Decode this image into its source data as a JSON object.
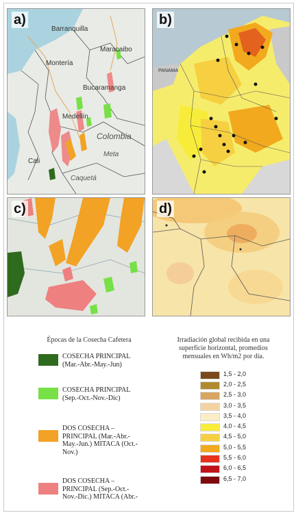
{
  "panels": {
    "a": {
      "label": "a)",
      "places": [
        "Barranquilla",
        "Maracaibo",
        "Montería",
        "Bucaramanga",
        "Medellín",
        "Colombia",
        "Meta",
        "Cali",
        "Caquetá"
      ]
    },
    "b": {
      "label": "b)",
      "places": [
        "PANAMA"
      ]
    },
    "c": {
      "label": "c)"
    },
    "d": {
      "label": "d)"
    }
  },
  "harvest_legend": {
    "title": "Épocas de la Cosecha Cafetera",
    "items": [
      {
        "lines": [
          "COSECHA PRINCIPAL",
          "(Mar.-Abr.-May.-Jun)"
        ],
        "color": "#2f6b1e"
      },
      {
        "lines": [
          "COSECHA PRINCIPAL",
          "(Sep.-Oct.-Nov.-Dic)"
        ],
        "color": "#77e046"
      },
      {
        "lines": [
          "DOS COSECHA –",
          "PRINCIPAL (Mar.-Abr.-",
          "May.-Jun.) MITACA (Oct.-",
          "Nov.)"
        ],
        "color": "#f2a224"
      },
      {
        "lines": [
          "DOS COSECHA –",
          "PRINCIPAL (Sep.-Oct.-",
          "Nov.-Dic.) MITACA (Abr.-"
        ],
        "color": "#ee8080"
      }
    ]
  },
  "irradiation_legend": {
    "title_lines": [
      "Irradiación global recibida en una",
      "superficie horizontal, promedios",
      "mensuales en Wh/m2 por día."
    ],
    "classes": [
      {
        "range": "1,5 - 2,0",
        "color": "#7a4a1c"
      },
      {
        "range": "2,0 - 2,5",
        "color": "#b08a2e"
      },
      {
        "range": "2,5 - 3,0",
        "color": "#d9a561"
      },
      {
        "range": "3,0 - 3,5",
        "color": "#f4d3a2"
      },
      {
        "range": "3,5 - 4,0",
        "color": "#fbeec6"
      },
      {
        "range": "4,0 - 4,5",
        "color": "#f8ec3a"
      },
      {
        "range": "4,5 - 5,0",
        "color": "#f6d040"
      },
      {
        "range": "5,0 - 5,5",
        "color": "#f2a91d"
      },
      {
        "range": "5,5 - 6,0",
        "color": "#e7321e"
      },
      {
        "range": "6,0 - 6,5",
        "color": "#c1121a"
      },
      {
        "range": "6,5 - 7,0",
        "color": "#7e0a0e"
      }
    ]
  }
}
